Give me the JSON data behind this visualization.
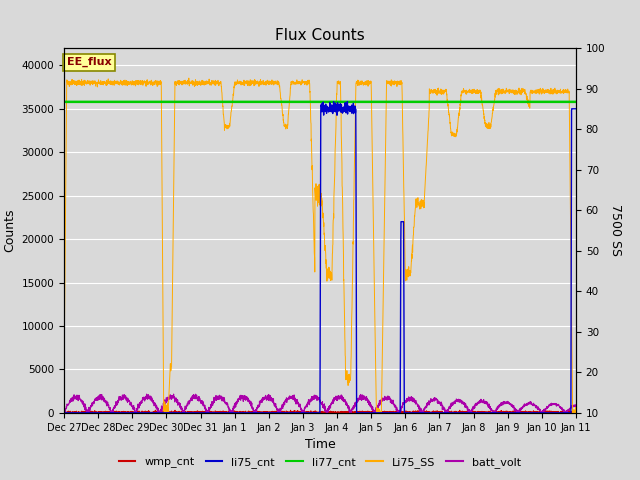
{
  "title": "Flux Counts",
  "ylabel_left": "Counts",
  "ylabel_right": "7500 SS",
  "xlabel": "Time",
  "annotation_text": "EE_flux",
  "annotation_bg": "#ffff99",
  "annotation_border": "#888800",
  "annotation_text_color": "#880000",
  "ylim_left": [
    0,
    42000
  ],
  "ylim_right": [
    10,
    100
  ],
  "xtick_labels": [
    "Dec 27",
    "Dec 28",
    "Dec 29",
    "Dec 30",
    "Dec 31",
    "Jan 1",
    "Jan 2",
    "Jan 3",
    "Jan 4",
    "Jan 5",
    "Jan 6",
    "Jan 7",
    "Jan 8",
    "Jan 9",
    "Jan 10",
    "Jan 11"
  ],
  "ytick_left": [
    0,
    5000,
    10000,
    15000,
    20000,
    25000,
    30000,
    35000,
    40000
  ],
  "ytick_right": [
    10,
    20,
    30,
    40,
    50,
    60,
    70,
    80,
    90,
    100
  ],
  "bg_color": "#d9d9d9",
  "grid_color": "#ffffff",
  "li75_ss_color": "#ffaa00",
  "li77_cnt_color": "#00cc00",
  "li75_cnt_color": "#0000cc",
  "wmp_cnt_color": "#cc0000",
  "batt_volt_color": "#aa00aa"
}
